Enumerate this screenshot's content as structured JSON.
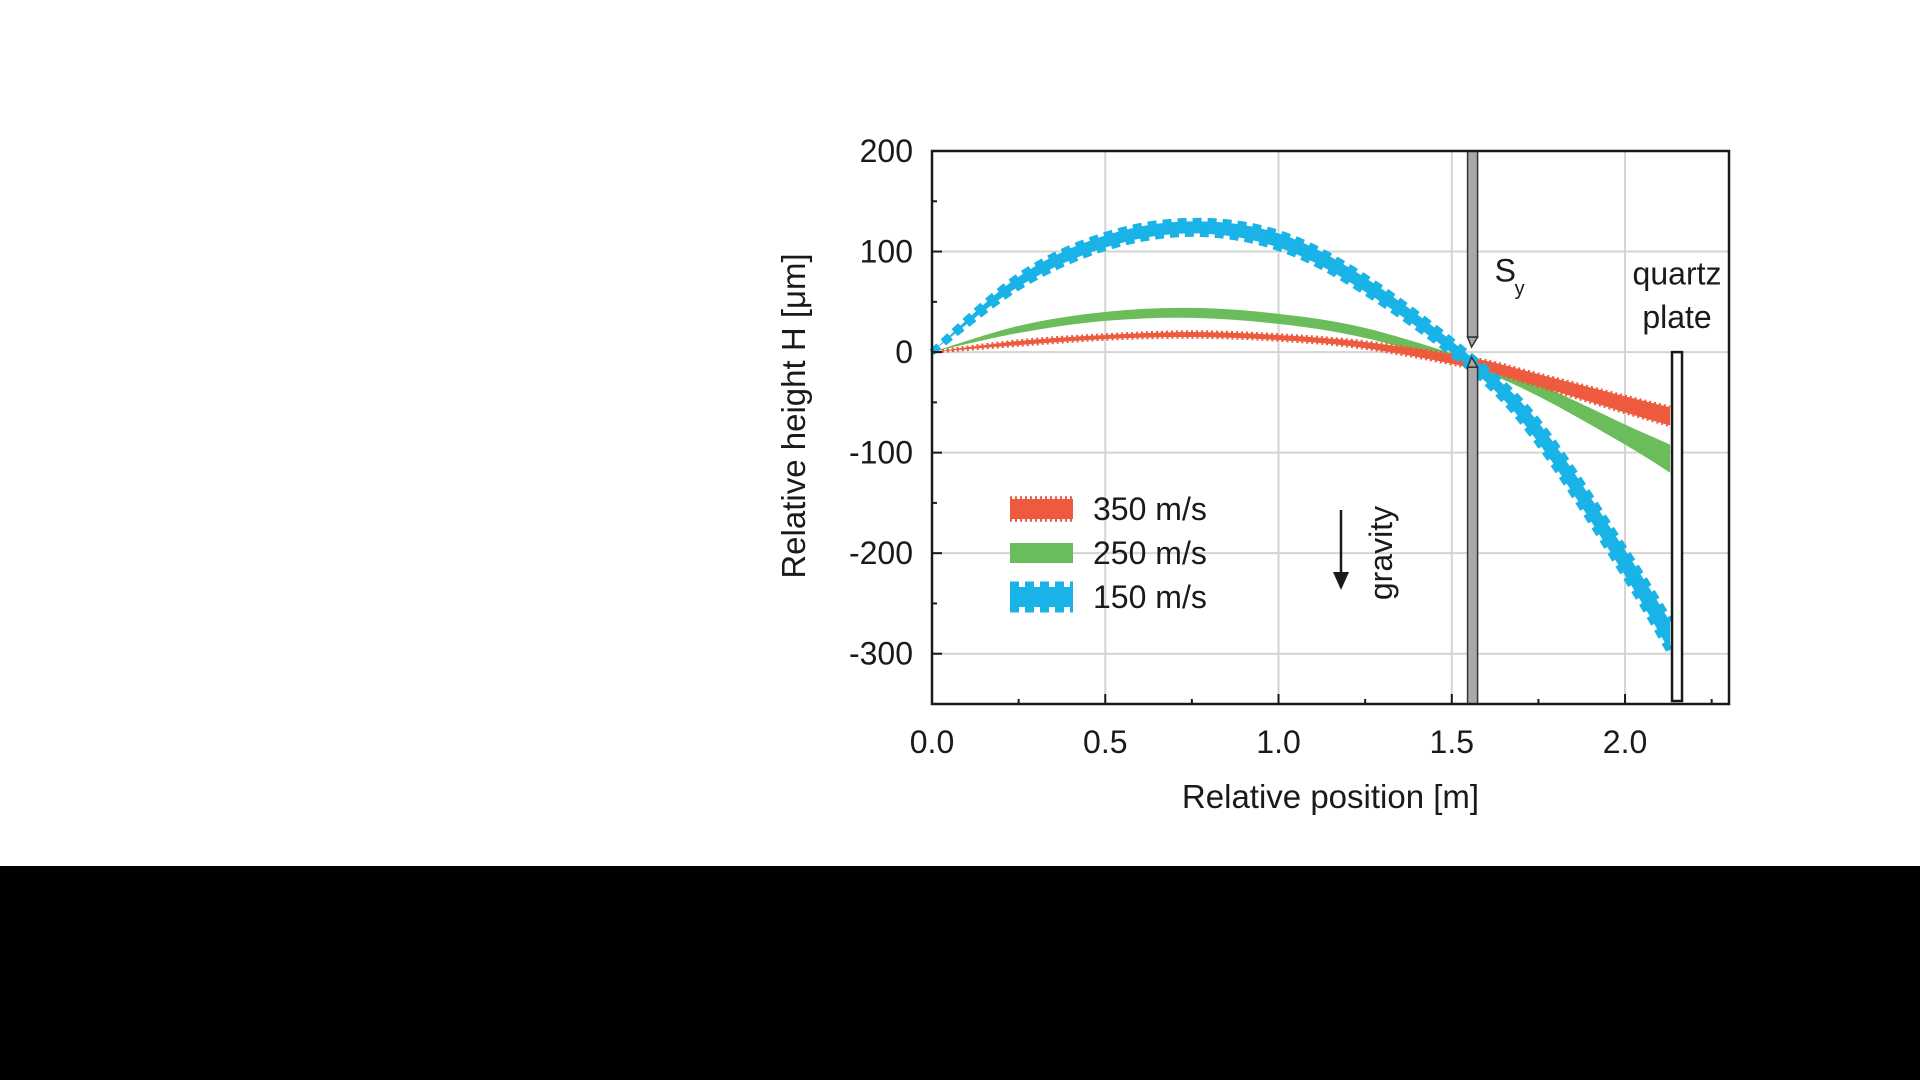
{
  "chart_data": {
    "type": "line",
    "title": "",
    "xlabel": "Relative position [m]",
    "ylabel": "Relative height H [μm]",
    "xlim": [
      0.0,
      2.3
    ],
    "ylim": [
      -350,
      200
    ],
    "x_ticks": [
      "0.0",
      "0.5",
      "1.0",
      "1.5",
      "2.0"
    ],
    "x_tick_values": [
      0.0,
      0.5,
      1.0,
      1.5,
      2.0
    ],
    "y_ticks": [
      "200",
      "100",
      "0",
      "-100",
      "-200",
      "-300"
    ],
    "y_tick_values": [
      200,
      100,
      0,
      -100,
      -200,
      -300
    ],
    "grid": true,
    "legend_position": "lower-left",
    "series": [
      {
        "name": "350 m/s",
        "color": "#ee5a3d",
        "style": "dotted-edge band",
        "x": [
          0.0,
          0.25,
          0.5,
          0.75,
          1.0,
          1.25,
          1.56,
          1.75,
          2.0,
          2.13
        ],
        "upper": [
          0,
          11,
          17,
          20,
          17,
          10,
          -6,
          -22,
          -44,
          -55
        ],
        "lower": [
          0,
          7,
          13,
          15,
          12,
          4,
          -16,
          -34,
          -60,
          -73
        ]
      },
      {
        "name": "250 m/s",
        "color": "#6abd5a",
        "style": "solid band",
        "x": [
          0.0,
          0.25,
          0.5,
          0.75,
          1.0,
          1.25,
          1.56,
          1.75,
          2.0,
          2.13
        ],
        "upper": [
          0,
          26,
          40,
          44,
          38,
          24,
          -8,
          -32,
          -72,
          -92
        ],
        "lower": [
          0,
          19,
          31,
          34,
          28,
          14,
          -16,
          -44,
          -92,
          -120
        ]
      },
      {
        "name": "150 m/s",
        "color": "#1ab3e8",
        "style": "dashed-edge band",
        "x": [
          0.0,
          0.25,
          0.5,
          0.75,
          1.0,
          1.25,
          1.56,
          1.75,
          2.0,
          2.13
        ],
        "upper": [
          0,
          75,
          116,
          130,
          118,
          74,
          -6,
          -70,
          -197,
          -268
        ],
        "lower": [
          0,
          65,
          104,
          118,
          104,
          60,
          -18,
          -90,
          -222,
          -298
        ]
      }
    ],
    "annotations": {
      "slit_label": "S",
      "slit_subscript": "y",
      "slit_x": 1.56,
      "plate_label_line1": "quartz",
      "plate_label_line2": "plate",
      "plate_x": 2.15,
      "plate_top": 0,
      "gravity_label": "gravity"
    }
  }
}
